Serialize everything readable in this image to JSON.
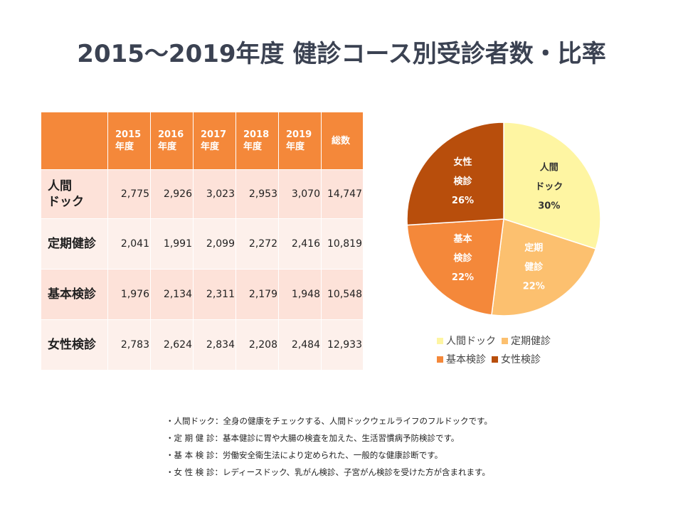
{
  "title": "2015～2019年度 健診コース別受診者数・比率",
  "table": {
    "headers": [
      {
        "line1": "2015",
        "line2": "年度"
      },
      {
        "line1": "2016",
        "line2": "年度"
      },
      {
        "line1": "2017",
        "line2": "年度"
      },
      {
        "line1": "2018",
        "line2": "年度"
      },
      {
        "line1": "2019",
        "line2": "年度"
      },
      {
        "line1": "総数",
        "line2": ""
      }
    ],
    "rows": [
      {
        "label": "人間\nドック",
        "values": [
          "2,775",
          "2,926",
          "3,023",
          "2,953",
          "3,070",
          "14,747"
        ]
      },
      {
        "label": "定期健診",
        "values": [
          "2,041",
          "1,991",
          "2,099",
          "2,272",
          "2,416",
          "10,819"
        ]
      },
      {
        "label": "基本検診",
        "values": [
          "1,976",
          "2,134",
          "2,311",
          "2,179",
          "1,948",
          "10,548"
        ]
      },
      {
        "label": "女性検診",
        "values": [
          "2,783",
          "2,624",
          "2,834",
          "2,208",
          "2,484",
          "12,933"
        ]
      }
    ]
  },
  "chart_data": {
    "type": "pie",
    "title": "",
    "slices": [
      {
        "name": "人間ドック",
        "label_lines": [
          "人間",
          "ドック",
          "30%"
        ],
        "value": 30,
        "color": "#fef5a2",
        "text_color": "#333333"
      },
      {
        "name": "定期健診",
        "label_lines": [
          "定期",
          "健診",
          "22%"
        ],
        "value": 22,
        "color": "#fcc06f",
        "text_color": "#ffffff"
      },
      {
        "name": "基本検診",
        "label_lines": [
          "基本",
          "検診",
          "22%"
        ],
        "value": 22,
        "color": "#f4883a",
        "text_color": "#ffffff"
      },
      {
        "name": "女性検診",
        "label_lines": [
          "女性",
          "検診",
          "26%"
        ],
        "value": 26,
        "color": "#b84e0c",
        "text_color": "#ffffff"
      }
    ],
    "start_angle_deg": 0,
    "direction": "clockwise",
    "legend_position": "bottom"
  },
  "legend": {
    "items": [
      {
        "label": "人間ドック",
        "color": "#fef5a2"
      },
      {
        "label": "定期健診",
        "color": "#fcc06f"
      },
      {
        "label": "基本検診",
        "color": "#f4883a"
      },
      {
        "label": "女性検診",
        "color": "#b84e0c"
      }
    ]
  },
  "notes": [
    "・人間ドック：全身の健康をチェックする、人間ドックウェルライフのフルドックです。",
    "・定 期 健 診：基本健診に胃や大腸の検査を加えた、生活習慣病予防検診です。",
    "・基 本 検 診：労働安全衛生法により定められた、一般的な健康診断です。",
    "・女 性 検 診：レディースドック、乳がん検診、子宮がん検診を受けた方が含まれます。"
  ]
}
